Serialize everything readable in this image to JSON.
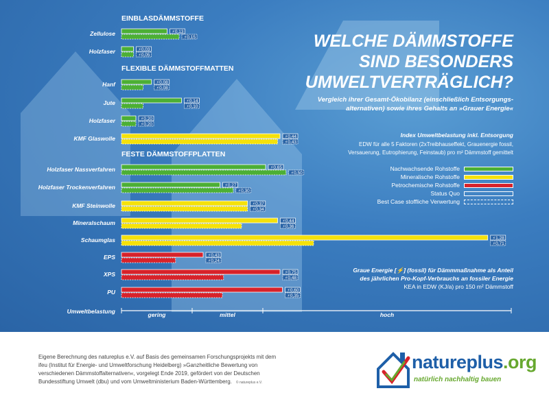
{
  "title_lines": [
    "WELCHE DÄMMSTOFFE",
    "SIND BESONDERS",
    "UMWELTVERTRÄGLICH?"
  ],
  "subtitle_lines": [
    "Vergleich ihrer Gesamt-Ökobilanz (einschließlich Entsorgungs-",
    "alternativen) sowie ihres Gehalts an »Grauer Energie«"
  ],
  "legend": {
    "title": "Index Umweltbelastung inkl. Entsorgung",
    "desc_lines": [
      "EDW für alle 5 Faktoren (2xTreibhauseffekt, Grauenergie fossil,",
      "Versauerung, Eutrophierung, Feinstaub) pro m² Dämmstoff gemittelt"
    ],
    "items": [
      {
        "label": "Nachwachsende Rohstoffe",
        "color": "#4caf35",
        "style": "solid"
      },
      {
        "label": "Mineralische Rohstoffe",
        "color": "#f5e10a",
        "style": "solid"
      },
      {
        "label": "Petrochemische Rohstoffe",
        "color": "#d7222a",
        "style": "solid"
      },
      {
        "label": "Status Quo",
        "color": "none",
        "style": "solid-outline"
      },
      {
        "label": "Best Case stoffliche Verwertung",
        "color": "none",
        "style": "dashed-outline"
      }
    ]
  },
  "graue_energie": {
    "line1": "Graue Energie [⚡] (fossil) für Dämmmaßnahme als Anteil",
    "line2": "des jährlichen Pro-Kopf-Verbrauchs an fossiler Energie",
    "line3": "KEA in EDW (KJ/a) pro 150 m² Dämmstoff"
  },
  "chart_data": {
    "type": "bar",
    "scale_labels": [
      "gering",
      "mittel",
      "hoch"
    ],
    "axis_label": "Umweltbelastung",
    "groups": [
      {
        "name": "EINBLASDÄMMSTOFFE",
        "items": [
          {
            "label": "Zellulose",
            "material": "nachwachsend",
            "status_quo": 0.38,
            "best_case": 0.48,
            "energy_status_quo": "0,13",
            "energy_best_case": "0,15"
          },
          {
            "label": "Holzfaser",
            "material": "nachwachsend",
            "status_quo": 0.1,
            "best_case": 0.1,
            "energy_status_quo": "0,03",
            "energy_best_case": "0,05"
          }
        ]
      },
      {
        "name": "FLEXIBLE DÄMMSTOFFMATTEN",
        "items": [
          {
            "label": "Hanf",
            "material": "nachwachsend",
            "status_quo": 0.25,
            "best_case": 0.18,
            "energy_status_quo": "0,08",
            "energy_best_case": "0,08"
          },
          {
            "label": "Jute",
            "material": "nachwachsend",
            "status_quo": 0.5,
            "best_case": 0.18,
            "energy_status_quo": "0,14",
            "energy_best_case": "0,10"
          },
          {
            "label": "Holzfaser",
            "material": "nachwachsend",
            "status_quo": 0.12,
            "best_case": 0.12,
            "energy_status_quo": "0,20",
            "energy_best_case": "0,20"
          },
          {
            "label": "KMF Glaswolle",
            "material": "mineralisch",
            "status_quo": 1.32,
            "best_case": 1.3,
            "energy_status_quo": "0,44",
            "energy_best_case": "0,43"
          }
        ]
      },
      {
        "name": "FESTE DÄMMSTOFFPLATTEN",
        "items": [
          {
            "label": "Holzfaser Nassverfahren",
            "material": "nachwachsend",
            "status_quo": 1.2,
            "best_case": 1.37,
            "energy_status_quo": "0,65",
            "energy_best_case": "0,50"
          },
          {
            "label": "Holzfaser Trockenverfahren",
            "material": "nachwachsend",
            "status_quo": 0.82,
            "best_case": 0.93,
            "energy_status_quo": "0,27",
            "energy_best_case": "0,30"
          },
          {
            "label": "KMF Steinwolle",
            "material": "mineralisch",
            "status_quo": 1.05,
            "best_case": 1.05,
            "energy_status_quo": "0,37",
            "energy_best_case": "0,34"
          },
          {
            "label": "Mineralschaum",
            "material": "mineralisch",
            "status_quo": 1.3,
            "best_case": 1.0,
            "energy_status_quo": "0,44",
            "energy_best_case": "0,36"
          },
          {
            "label": "Schaumglas",
            "material": "mineralisch",
            "status_quo": 3.05,
            "best_case": 1.6,
            "energy_status_quo": "1,28",
            "energy_best_case": "0,71"
          },
          {
            "label": "EPS",
            "material": "petrochemisch",
            "status_quo": 0.68,
            "best_case": 0.45,
            "energy_status_quo": "0,43",
            "energy_best_case": "0,24"
          },
          {
            "label": "XPS",
            "material": "petrochemisch",
            "status_quo": 1.32,
            "best_case": 0.85,
            "energy_status_quo": "0,75",
            "energy_best_case": "0,48"
          },
          {
            "label": "PU",
            "material": "petrochemisch",
            "status_quo": 1.34,
            "best_case": 0.84,
            "energy_status_quo": "0,60",
            "energy_best_case": "0,35"
          }
        ]
      }
    ]
  },
  "footer": {
    "lines": [
      "Eigene Berechnung des natureplus e.V. auf Basis des gemeinsamen Forschungsprojekts mit dem",
      "ifeu (Institut für Energie- und Umweltforschung Heidelberg) »Ganzheitliche Bewertung von",
      "verschiedenen Dämmstoffalternativen«, vorgelegt Ende 2019, gefördert von der Deutschen",
      "Bundesstiftung Umwelt (dbu) und vom Umweltministerium Baden-Württemberg."
    ],
    "copyright": "© natureplus e.V."
  },
  "logo": {
    "word_main": "natureplus",
    "word_suffix": ".org",
    "tagline": "natürlich nachhaltig bauen"
  },
  "colors": {
    "nachwachsend": "#4caf35",
    "mineralisch": "#f5e10a",
    "petrochemisch": "#d7222a",
    "background": "#3b7dc0"
  }
}
